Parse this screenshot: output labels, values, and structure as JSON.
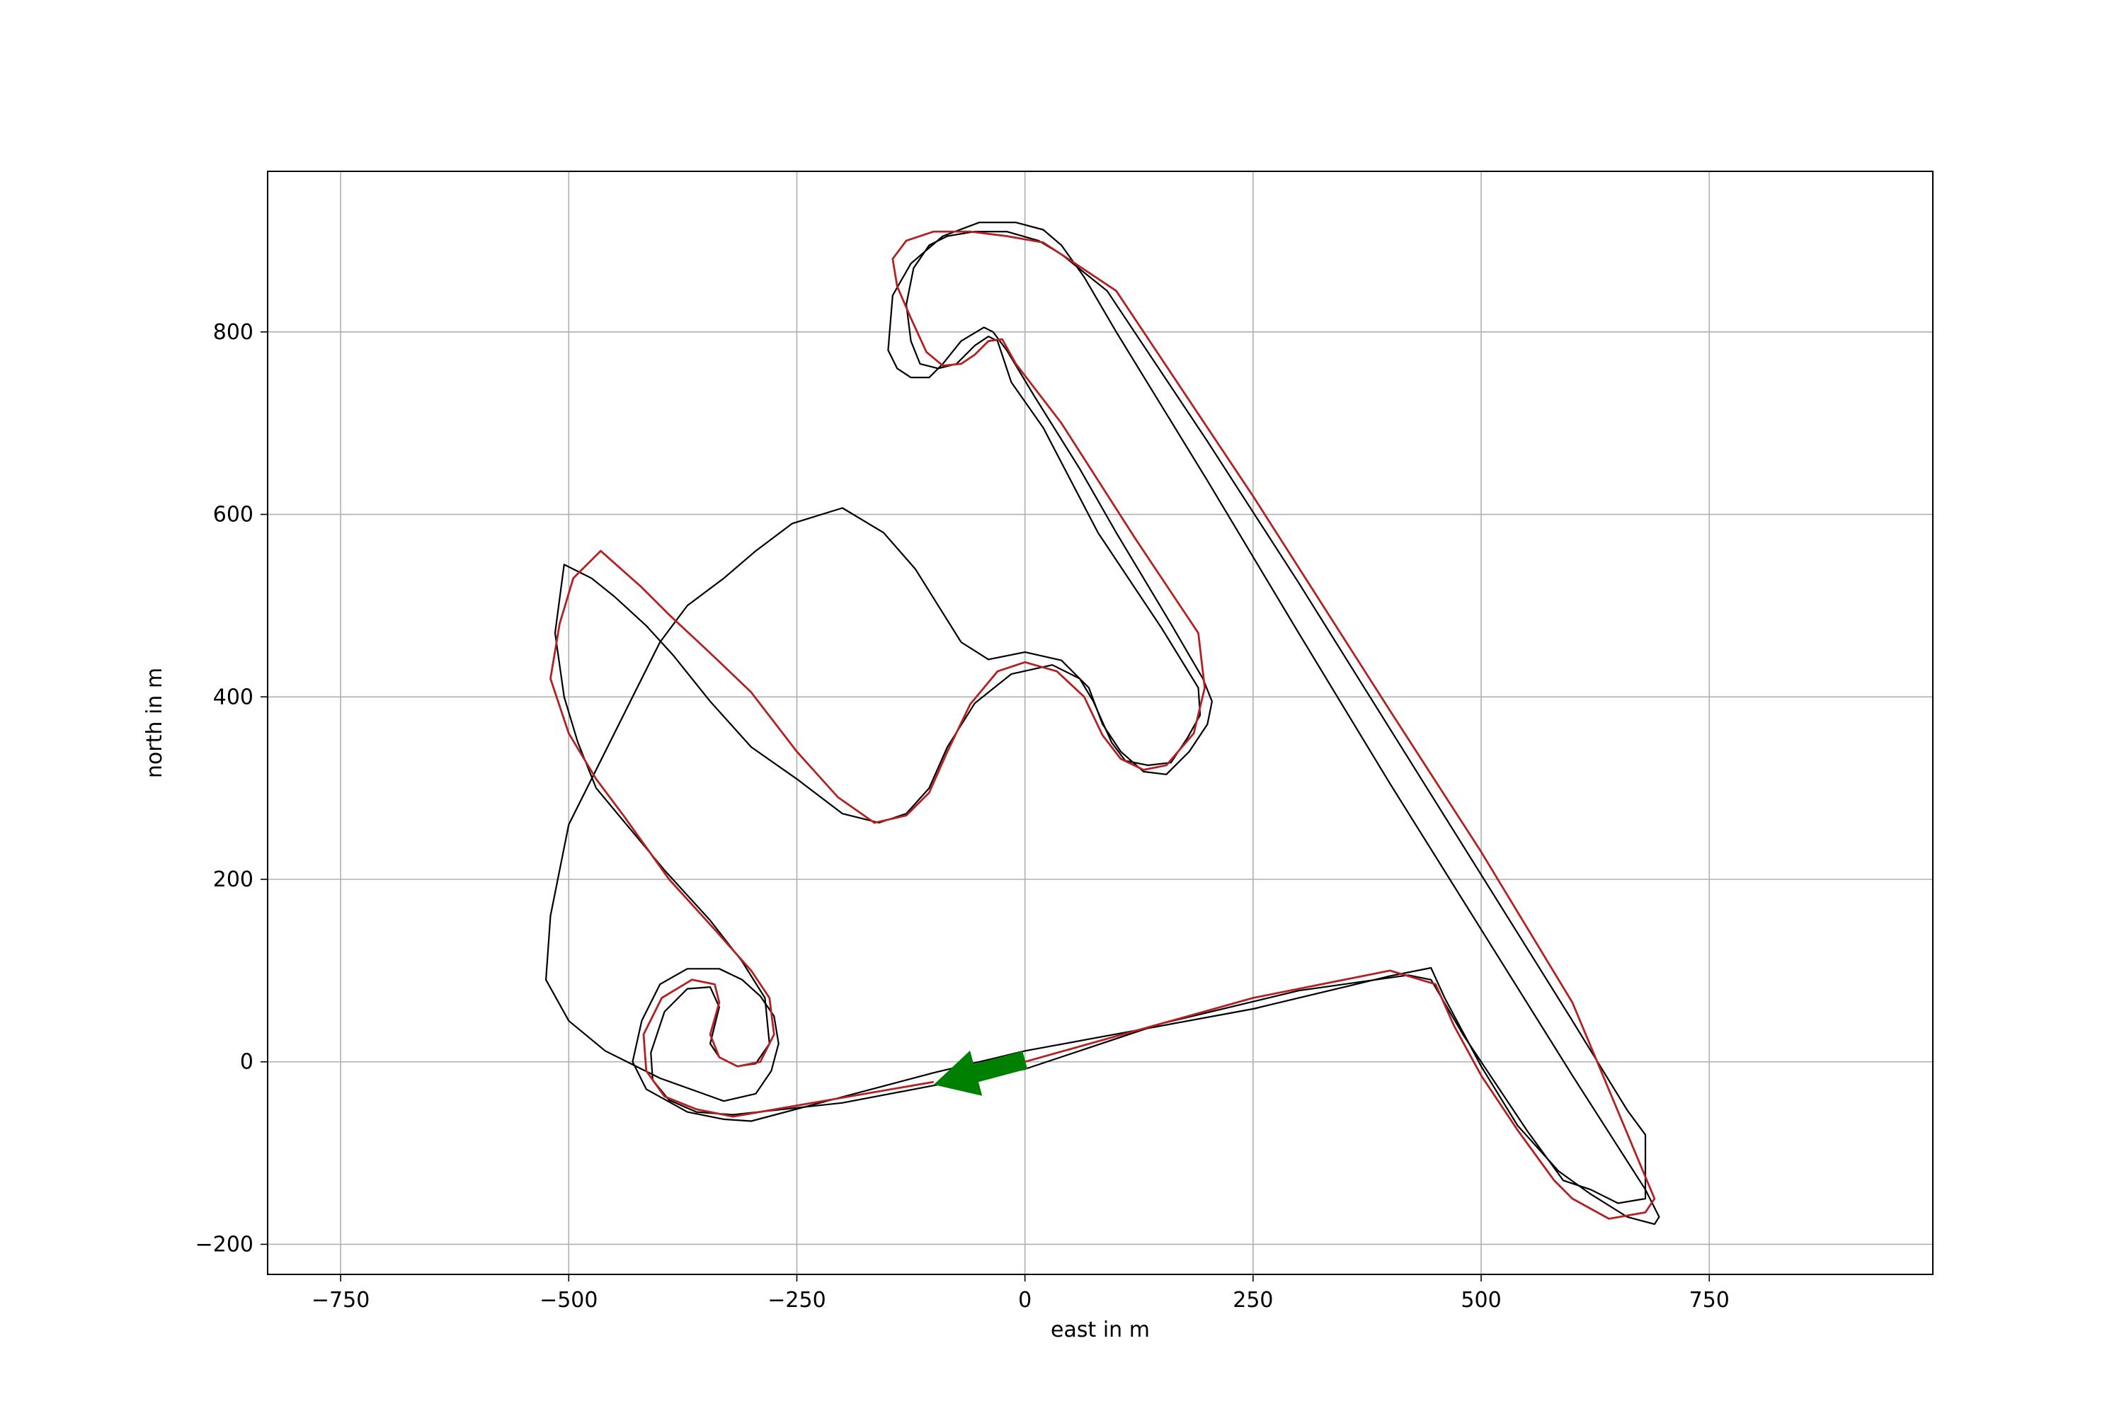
{
  "chart_data": {
    "type": "line",
    "title": "",
    "xlabel": "east in m",
    "ylabel": "north in m",
    "xlim": [
      -830,
      995
    ],
    "ylim": [
      -233,
      976
    ],
    "grid": true,
    "xticks": [
      -750,
      -500,
      -250,
      0,
      250,
      500,
      750
    ],
    "xtick_labels": [
      "−750",
      "−500",
      "−250",
      "0",
      "250",
      "500",
      "750"
    ],
    "yticks": [
      -200,
      0,
      200,
      400,
      600,
      800
    ],
    "ytick_labels": [
      "−200",
      "0",
      "200",
      "400",
      "600",
      "800"
    ],
    "colors": {
      "boundary": "#000000",
      "racing_line": "#b22222",
      "arrow": "#008000",
      "grid": "#b0b0b0"
    },
    "series": [
      {
        "role": "outer-boundary",
        "x": [
          0,
          -100,
          -300,
          -330,
          -370,
          -415,
          -430,
          -420,
          -400,
          -370,
          -335,
          -310,
          -290,
          -275,
          -270,
          -278,
          -295,
          -330,
          -400,
          -460,
          -500,
          -525,
          -520,
          -500,
          -465,
          -430,
          -400,
          -370,
          -330,
          -295,
          -255,
          -200,
          -155,
          -120,
          -95,
          -70,
          -40,
          0,
          40,
          70,
          85,
          105,
          130,
          155,
          180,
          200,
          205,
          195,
          160,
          100,
          60,
          10,
          -20,
          -35,
          -45,
          -70,
          -90,
          -105,
          -125,
          -140,
          -150,
          -145,
          -125,
          -90,
          -50,
          -10,
          20,
          40,
          65,
          100,
          200,
          300,
          400,
          500,
          600,
          680,
          695,
          690,
          660,
          620,
          585,
          540,
          500,
          460,
          445,
          400,
          250,
          0
        ],
        "y": [
          12,
          -12,
          -65,
          -63,
          -55,
          -30,
          0,
          45,
          85,
          102,
          102,
          90,
          72,
          50,
          20,
          -10,
          -35,
          -43,
          -18,
          12,
          45,
          90,
          160,
          260,
          330,
          400,
          460,
          500,
          530,
          560,
          590,
          607,
          580,
          540,
          500,
          460,
          441,
          449,
          440,
          410,
          370,
          340,
          318,
          315,
          340,
          370,
          395,
          420,
          480,
          580,
          650,
          730,
          780,
          800,
          805,
          790,
          765,
          750,
          750,
          760,
          780,
          840,
          875,
          905,
          920,
          920,
          912,
          895,
          860,
          800,
          637,
          470,
          305,
          145,
          -15,
          -140,
          -170,
          -178,
          -170,
          -145,
          -120,
          -70,
          -5,
          70,
          103,
          94,
          58,
          12
        ]
      },
      {
        "role": "inner-boundary",
        "x": [
          0,
          -100,
          -200,
          -320,
          -360,
          -390,
          -408,
          -410,
          -395,
          -370,
          -345,
          -335,
          -340,
          -345,
          -335,
          -315,
          -295,
          -280,
          -285,
          -310,
          -345,
          -395,
          -445,
          -470,
          -490,
          -505,
          -515,
          -505,
          -475,
          -450,
          -415,
          -385,
          -345,
          -300,
          -250,
          -200,
          -160,
          -130,
          -105,
          -85,
          -55,
          -15,
          30,
          60,
          75,
          95,
          110,
          135,
          160,
          178,
          192,
          190,
          150,
          80,
          20,
          -15,
          -30,
          -40,
          -55,
          -75,
          -95,
          -115,
          -125,
          -130,
          -122,
          -105,
          -85,
          -55,
          -20,
          15,
          40,
          90,
          200,
          300,
          400,
          500,
          600,
          660,
          680,
          680,
          650,
          620,
          590,
          550,
          520,
          480,
          445,
          420,
          300,
          150,
          0
        ],
        "y": [
          -8,
          -26,
          -45,
          -58,
          -55,
          -42,
          -20,
          10,
          55,
          80,
          82,
          60,
          40,
          20,
          5,
          -5,
          -2,
          20,
          70,
          110,
          155,
          210,
          270,
          300,
          350,
          400,
          470,
          545,
          530,
          510,
          478,
          445,
          395,
          345,
          310,
          272,
          262,
          272,
          300,
          345,
          393,
          425,
          435,
          420,
          395,
          350,
          330,
          325,
          328,
          355,
          380,
          410,
          475,
          580,
          695,
          745,
          790,
          795,
          785,
          765,
          760,
          765,
          790,
          830,
          870,
          895,
          905,
          910,
          910,
          900,
          885,
          845,
          680,
          525,
          365,
          205,
          45,
          -53,
          -80,
          -150,
          -155,
          -140,
          -130,
          -75,
          -30,
          30,
          90,
          95,
          78,
          42,
          -8
        ]
      },
      {
        "role": "racing-line",
        "x": [
          -100,
          -320,
          -360,
          -395,
          -415,
          -418,
          -398,
          -365,
          -340,
          -335,
          -345,
          -335,
          -315,
          -290,
          -275,
          -280,
          -300,
          -340,
          -390,
          -440,
          -470,
          -500,
          -520,
          -510,
          -495,
          -465,
          -420,
          -390,
          -345,
          -300,
          -250,
          -205,
          -165,
          -130,
          -105,
          -85,
          -60,
          -30,
          0,
          35,
          65,
          85,
          105,
          130,
          155,
          185,
          197,
          190,
          120,
          40,
          -10,
          -25,
          -40,
          -55,
          -70,
          -90,
          -108,
          -125,
          -140,
          -145,
          -130,
          -100,
          -60,
          -20,
          20,
          55,
          100,
          250,
          400,
          500,
          600,
          690,
          680,
          640,
          600,
          580,
          540,
          500,
          470,
          450,
          400,
          250,
          0
        ],
        "y": [
          -22,
          -60,
          -52,
          -38,
          -10,
          30,
          70,
          90,
          85,
          65,
          30,
          5,
          -5,
          0,
          30,
          70,
          100,
          145,
          200,
          270,
          310,
          360,
          420,
          480,
          530,
          560,
          520,
          490,
          448,
          405,
          340,
          290,
          262,
          270,
          295,
          340,
          392,
          428,
          438,
          428,
          400,
          358,
          332,
          320,
          325,
          360,
          410,
          470,
          575,
          700,
          765,
          792,
          790,
          775,
          765,
          763,
          778,
          815,
          850,
          880,
          900,
          910,
          910,
          905,
          898,
          875,
          845,
          620,
          385,
          230,
          65,
          -150,
          -165,
          -172,
          -150,
          -130,
          -75,
          -15,
          40,
          85,
          100,
          70,
          0
        ]
      }
    ],
    "arrow": {
      "from": [
        0,
        2
      ],
      "to": [
        -100,
        -25
      ]
    }
  }
}
